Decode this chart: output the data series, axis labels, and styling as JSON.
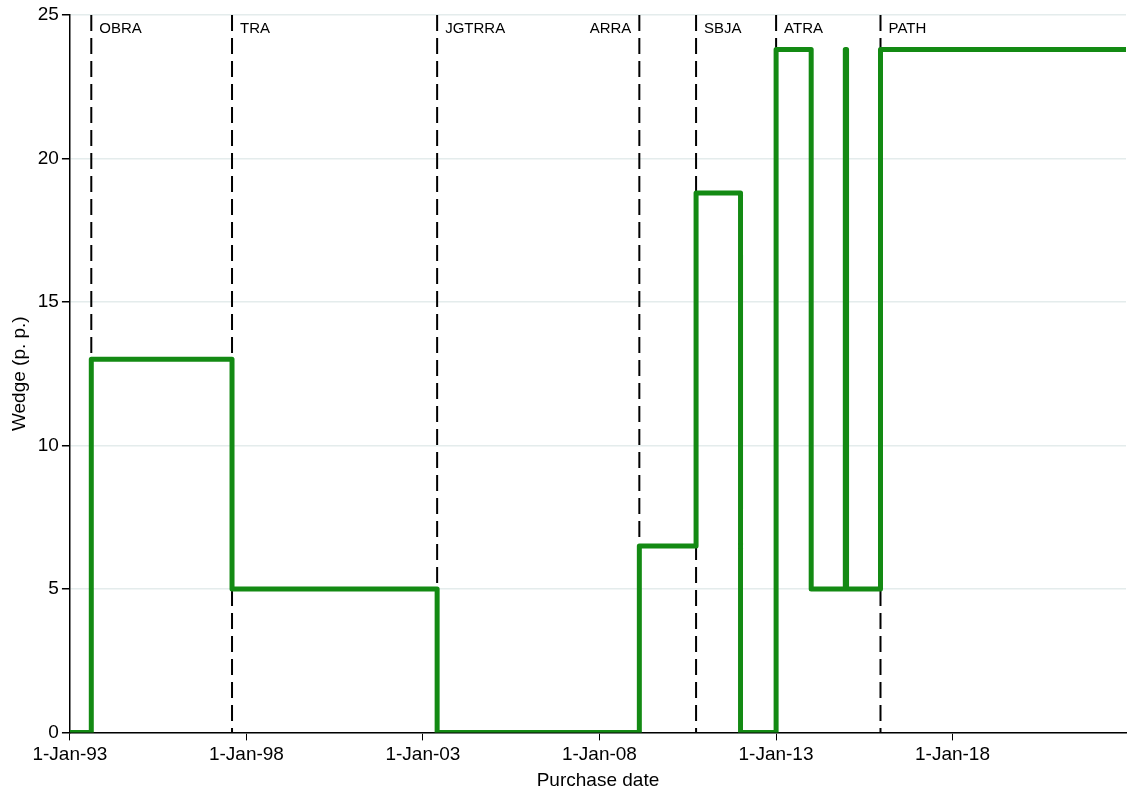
{
  "chart_data": {
    "type": "step",
    "xlabel": "Purchase date",
    "ylabel": "Wedge (p. p.)",
    "x": [
      "1993-01-01",
      "1993-08-10",
      "1997-08-05",
      "2003-05-28",
      "2009-02-17",
      "2010-09-27",
      "2011-12-31",
      "2013-01-02",
      "2013-12-31",
      "2014-12-19",
      "2015-01-01",
      "2015-12-18",
      "2022-12-01"
    ],
    "series": [
      {
        "color": "#138a13",
        "values": [
          0,
          13,
          5,
          0,
          6.5,
          18.8,
          0,
          23.8,
          5,
          23.8,
          5,
          23.8,
          23.8
        ]
      }
    ],
    "xlim": [
      "1993-01-01",
      "2022-12-01"
    ],
    "xticks": [
      {
        "value": "1993-01-01",
        "label": "1-Jan-93"
      },
      {
        "value": "1998-01-01",
        "label": "1-Jan-98"
      },
      {
        "value": "2003-01-01",
        "label": "1-Jan-03"
      },
      {
        "value": "2008-01-01",
        "label": "1-Jan-08"
      },
      {
        "value": "2013-01-01",
        "label": "1-Jan-13"
      },
      {
        "value": "2018-01-01",
        "label": "1-Jan-18"
      }
    ],
    "ylim": [
      0,
      25
    ],
    "yticks": [
      0,
      5,
      10,
      15,
      20,
      25
    ],
    "grid": "y",
    "legend": false,
    "marker": "none",
    "line_style": "solid",
    "ref_lines": [
      {
        "axis": "x",
        "value": "1993-08-10",
        "label": "OBRA",
        "color": "#000000",
        "line_style": "dashed"
      },
      {
        "axis": "x",
        "value": "1997-08-05",
        "label": "TRA",
        "color": "#000000",
        "line_style": "dashed"
      },
      {
        "axis": "x",
        "value": "2003-05-28",
        "label": "JGTRRA",
        "color": "#000000",
        "line_style": "dashed"
      },
      {
        "axis": "x",
        "value": "2009-02-17",
        "label": "ARRA",
        "color": "#000000",
        "line_style": "dashed"
      },
      {
        "axis": "x",
        "value": "2010-09-27",
        "label": "SBJA",
        "color": "#000000",
        "line_style": "dashed"
      },
      {
        "axis": "x",
        "value": "2013-01-02",
        "label": "ATRA",
        "color": "#000000",
        "line_style": "dashed"
      },
      {
        "axis": "x",
        "value": "2015-12-18",
        "label": "PATH",
        "color": "#000000",
        "line_style": "dashed"
      }
    ]
  }
}
